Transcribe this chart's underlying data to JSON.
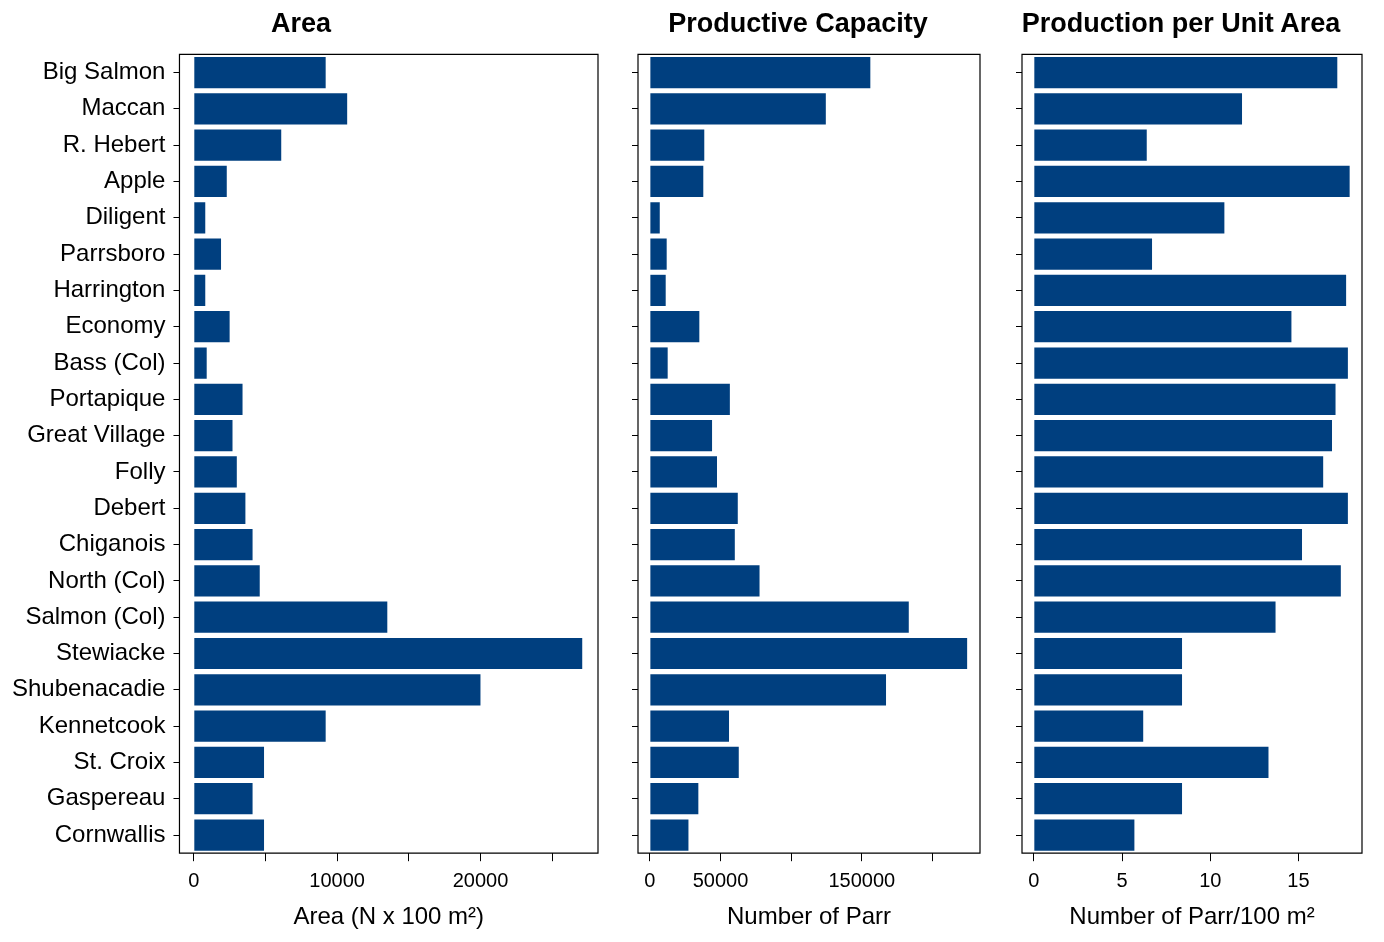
{
  "chart_data": [
    {
      "type": "bar",
      "orientation": "horizontal",
      "title": "Area",
      "xlabel": "Area (N x 100 m²)",
      "categories": [
        "Big Salmon",
        "Maccan",
        "R. Hebert",
        "Apple",
        "Diligent",
        "Parrsboro",
        "Harrington",
        "Economy",
        "Bass (Col)",
        "Portapique",
        "Great Village",
        "Folly",
        "Debert",
        "Chiganois",
        "North (Col)",
        "Salmon (Col)",
        "Stewiacke",
        "Shubenacadie",
        "Kennetcook",
        "St. Croix",
        "Gaspereau",
        "Cornwallis"
      ],
      "color": "#003f7f",
      "values": [
        9200,
        10700,
        6100,
        2300,
        800,
        1900,
        800,
        2500,
        900,
        3400,
        2700,
        3000,
        3600,
        4100,
        4600,
        13500,
        27100,
        20000,
        9200,
        4900,
        4100,
        4900
      ],
      "xlim": [
        -1000,
        28200
      ],
      "xticks": [
        0,
        {
          "value": 5000,
          "label": null
        },
        10000,
        {
          "value": 15000,
          "label": null
        },
        20000,
        {
          "value": 25000,
          "label": null
        }
      ]
    },
    {
      "type": "bar",
      "orientation": "horizontal",
      "title": "Productive Capacity",
      "xlabel": "Number of Parr",
      "categories": [
        null,
        null,
        null,
        null,
        null,
        null,
        null,
        null,
        null,
        null,
        null,
        null,
        null,
        null,
        null,
        null,
        null,
        null,
        null,
        null,
        null,
        null
      ],
      "color": "#003f7f",
      "values": [
        156000,
        124500,
        38500,
        37800,
        7000,
        11900,
        11200,
        35000,
        12600,
        56600,
        44000,
        47500,
        62200,
        60100,
        77600,
        183200,
        224500,
        167100,
        56000,
        62900,
        34300,
        27300
      ],
      "xlim": [
        -8400,
        233600
      ],
      "xticks": [
        0,
        50000,
        {
          "value": 100000,
          "label": null
        },
        150000,
        {
          "value": 200000,
          "label": null
        }
      ],
      "tick_labels": "x"
    },
    {
      "type": "bar",
      "orientation": "horizontal",
      "title": "Production per Unit Area",
      "xlabel": "Number of Parr/100 m²",
      "categories": [
        null,
        null,
        null,
        null,
        null,
        null,
        null,
        null,
        null,
        null,
        null,
        null,
        null,
        null,
        null,
        null,
        null,
        null,
        null,
        null,
        null,
        null
      ],
      "color": "#003f7f",
      "values": [
        17.2,
        11.8,
        6.4,
        17.9,
        10.8,
        6.7,
        17.7,
        14.6,
        17.8,
        17.1,
        16.9,
        16.4,
        17.8,
        15.2,
        17.4,
        13.7,
        8.4,
        8.4,
        6.2,
        13.3,
        8.4,
        5.7
      ],
      "xlim": [
        -0.67,
        18.6
      ],
      "xticks": [
        0,
        5,
        10,
        15
      ],
      "tick_labels": "x"
    }
  ]
}
